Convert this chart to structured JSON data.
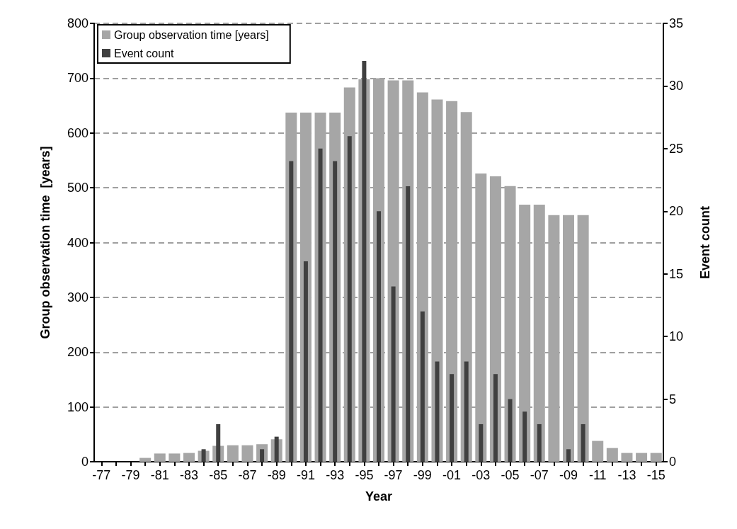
{
  "chart_data": {
    "type": "bar",
    "xlabel": "Year",
    "ylabel": "Group observation time  [years]",
    "y2label": "Event count",
    "categories": [
      "-77",
      null,
      "-79",
      null,
      "-81",
      null,
      "-83",
      null,
      "-85",
      null,
      "-87",
      null,
      "-89",
      null,
      "-91",
      null,
      "-93",
      null,
      "-95",
      null,
      "-97",
      null,
      "-99",
      null,
      "-01",
      null,
      "-03",
      null,
      "-05",
      null,
      "-07",
      null,
      "-09",
      null,
      "-11",
      null,
      "-13",
      null,
      "-15"
    ],
    "series": [
      {
        "name": "Group observation time [years]",
        "color": "#a6a6a6",
        "values": [
          0,
          0,
          0,
          7,
          15,
          15,
          16,
          20,
          29,
          30,
          30,
          32,
          41,
          637,
          637,
          637,
          637,
          683,
          698,
          700,
          696,
          696,
          674,
          661,
          658,
          638,
          526,
          521,
          503,
          469,
          469,
          450,
          450,
          450,
          38,
          25,
          16,
          16,
          16
        ]
      },
      {
        "name": "Event count",
        "color": "#404040",
        "axis": "y2",
        "values": [
          0,
          0,
          0,
          0,
          0,
          0,
          0,
          1,
          3,
          0,
          0,
          1,
          2,
          24,
          16,
          25,
          24,
          26,
          32,
          20,
          14,
          22,
          12,
          8,
          7,
          8,
          3,
          7,
          5,
          4,
          3,
          0,
          1,
          3,
          0,
          0,
          0,
          0,
          0
        ]
      }
    ],
    "ylim": [
      0,
      800
    ],
    "yticks": [
      0,
      100,
      200,
      300,
      400,
      500,
      600,
      700,
      800
    ],
    "y2lim": [
      0,
      35
    ],
    "y2ticks": [
      0,
      5,
      10,
      15,
      20,
      25,
      30,
      35
    ],
    "grid": "y",
    "legend": "top left"
  }
}
